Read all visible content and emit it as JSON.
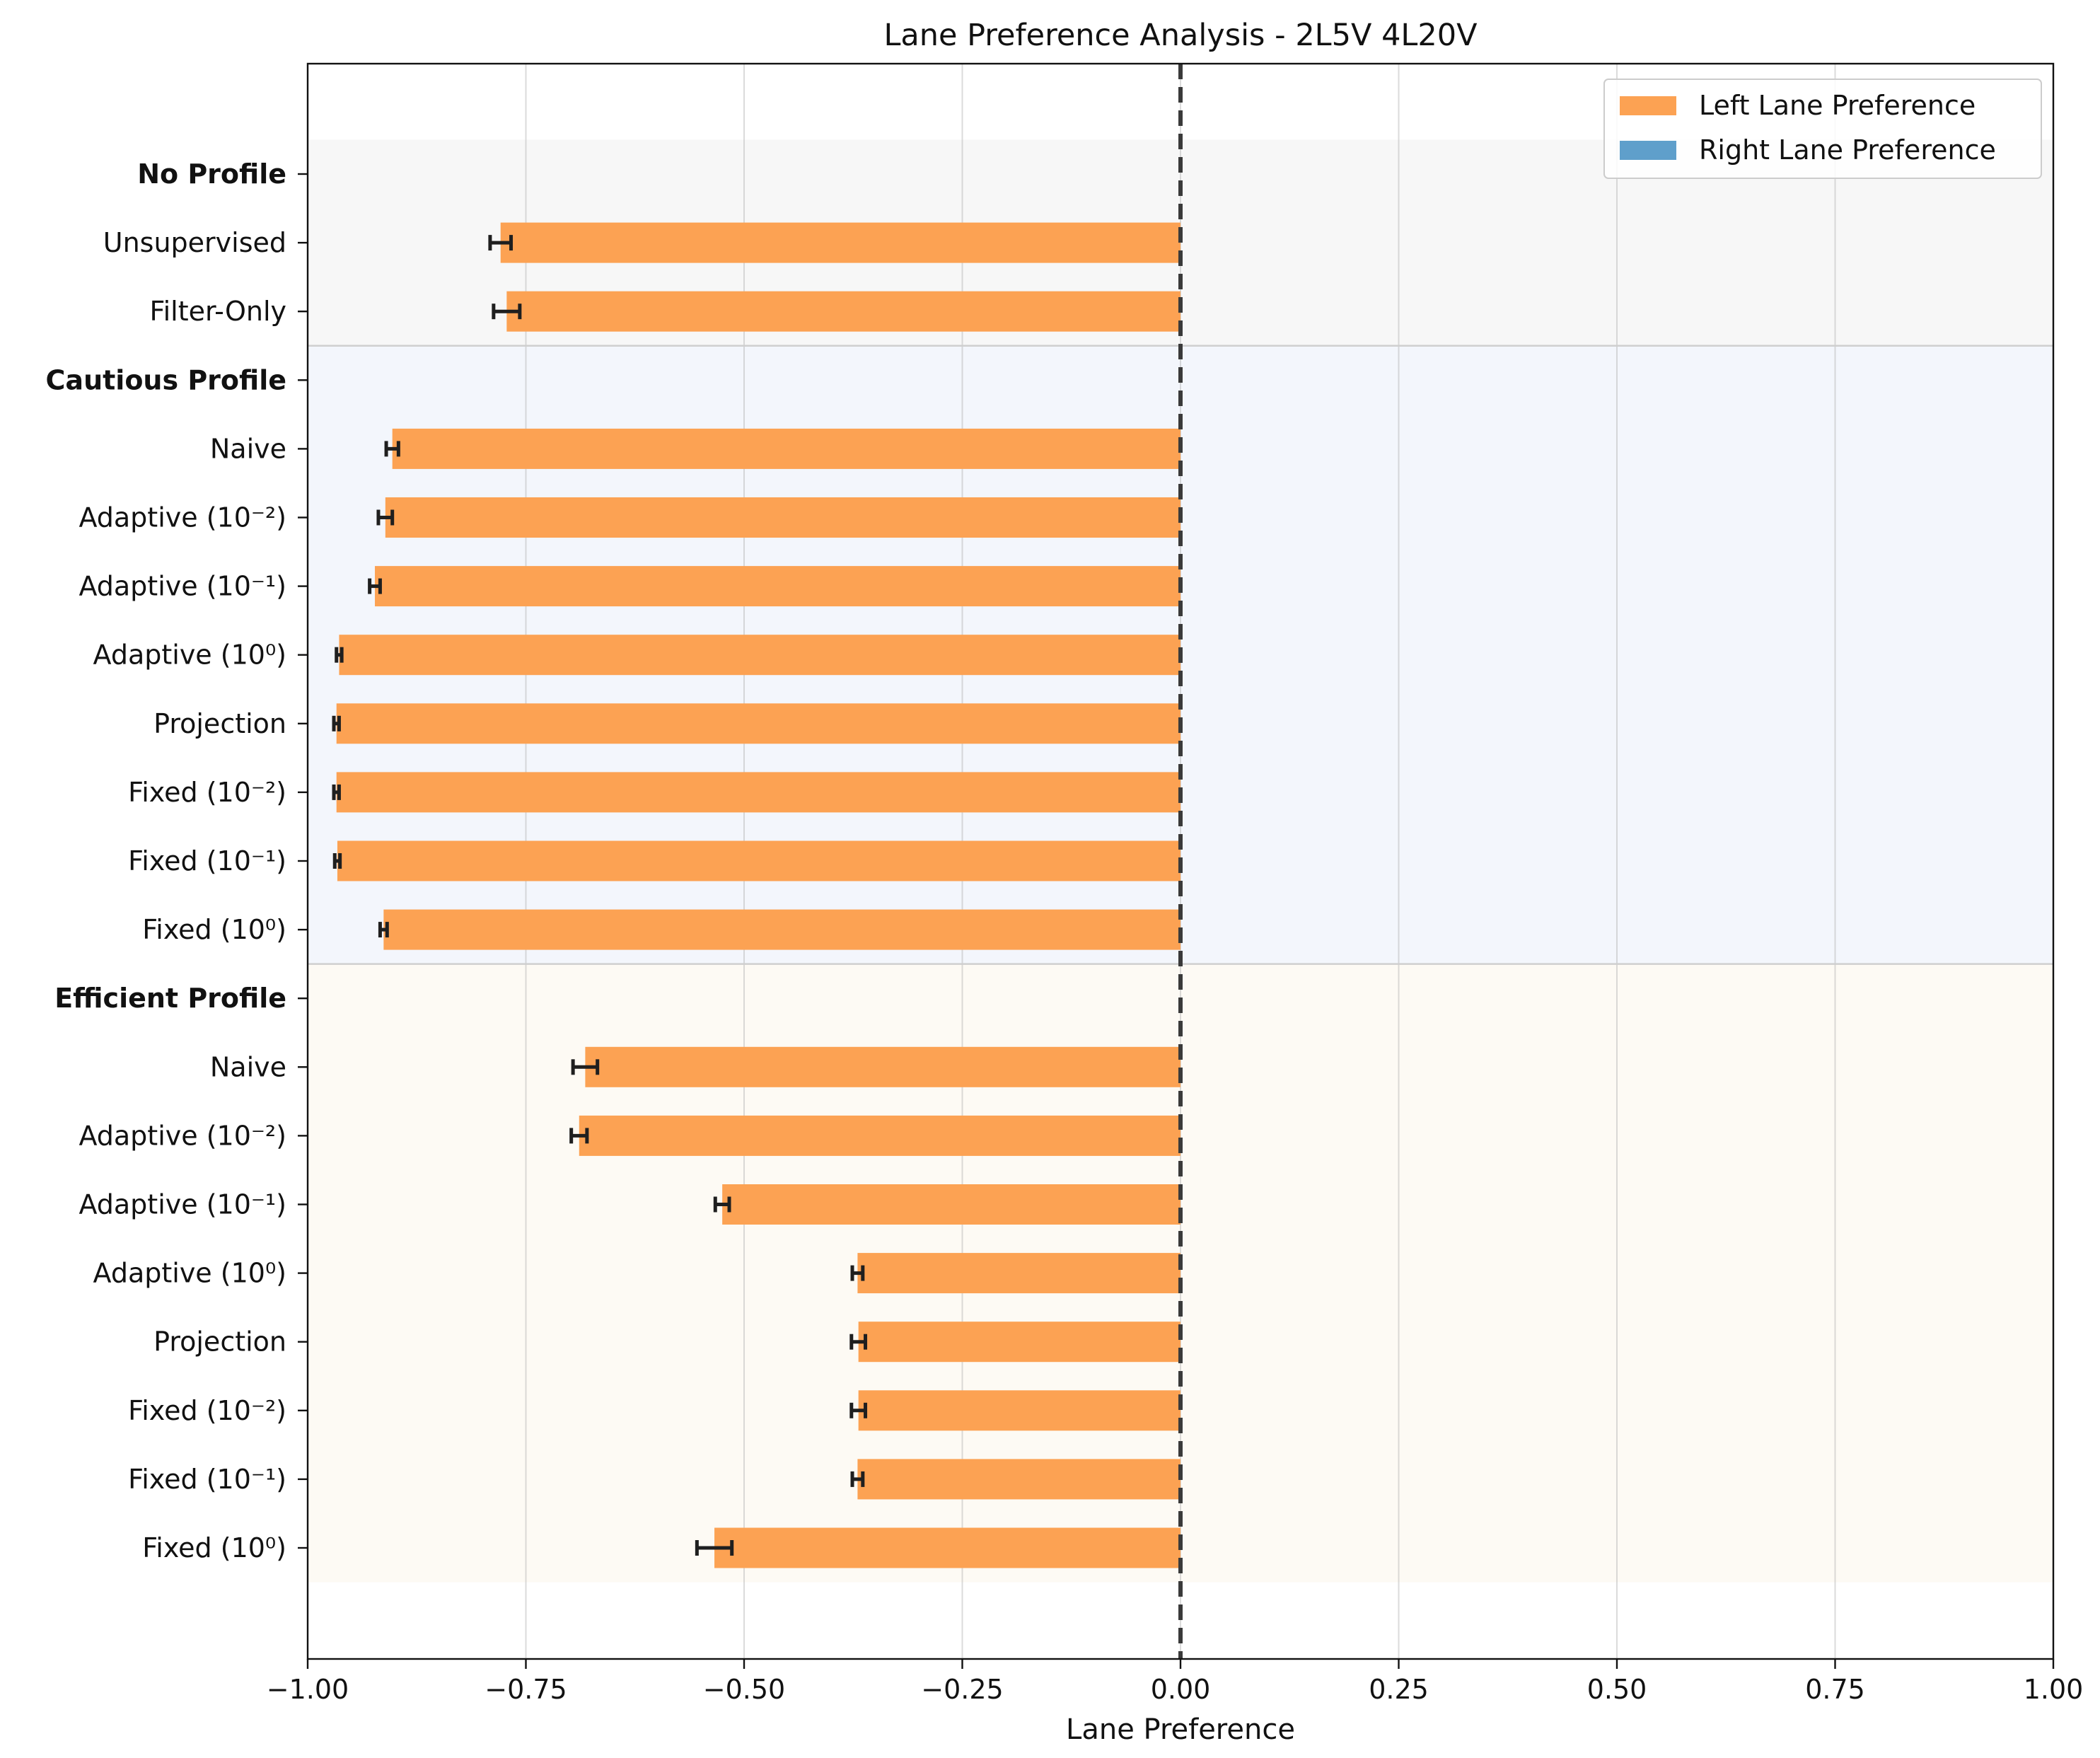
{
  "chart_data": {
    "type": "bar",
    "orientation": "horizontal",
    "title": "Lane Preference Analysis - 2L5V 4L20V",
    "xlabel": "Lane Preference",
    "ylabel": "",
    "xlim": [
      -1.0,
      1.0
    ],
    "xticks": [
      -1.0,
      -0.75,
      -0.5,
      -0.25,
      0.0,
      0.25,
      0.5,
      0.75,
      1.0
    ],
    "xtick_labels": [
      "−1.00",
      "−0.75",
      "−0.50",
      "−0.25",
      "0.00",
      "0.25",
      "0.50",
      "0.75",
      "1.00"
    ],
    "grid": "vertical",
    "zero_line": "dashed",
    "legend": {
      "placement": "top-right",
      "entries": [
        {
          "label": "Left Lane Preference",
          "color": "#fca253"
        },
        {
          "label": "Right Lane Preference",
          "color": "#5f9fcb"
        }
      ]
    },
    "groups": [
      {
        "name": "No Profile",
        "background": "#f7f7f7",
        "rows": [
          {
            "label": "Unsupervised",
            "value": -0.779,
            "error": 0.012
          },
          {
            "label": "Filter-Only",
            "value": -0.772,
            "error": 0.015
          }
        ]
      },
      {
        "name": "Cautious Profile",
        "background": "#f3f6fc",
        "rows": [
          {
            "label": "Naive",
            "value": -0.903,
            "error": 0.007
          },
          {
            "label": "Adaptive (10⁻²)",
            "value": -0.911,
            "error": 0.008
          },
          {
            "label": "Adaptive (10⁻¹)",
            "value": -0.923,
            "error": 0.006
          },
          {
            "label": "Adaptive (10⁰)",
            "value": -0.964,
            "error": 0.003
          },
          {
            "label": "Projection",
            "value": -0.967,
            "error": 0.003
          },
          {
            "label": "Fixed (10⁻²)",
            "value": -0.967,
            "error": 0.003
          },
          {
            "label": "Fixed (10⁻¹)",
            "value": -0.966,
            "error": 0.003
          },
          {
            "label": "Fixed (10⁰)",
            "value": -0.913,
            "error": 0.004
          }
        ]
      },
      {
        "name": "Efficient Profile",
        "background": "#fdfaf4",
        "rows": [
          {
            "label": "Naive",
            "value": -0.682,
            "error": 0.014
          },
          {
            "label": "Adaptive (10⁻²)",
            "value": -0.689,
            "error": 0.009
          },
          {
            "label": "Adaptive (10⁻¹)",
            "value": -0.525,
            "error": 0.008
          },
          {
            "label": "Adaptive (10⁰)",
            "value": -0.37,
            "error": 0.006
          },
          {
            "label": "Projection",
            "value": -0.369,
            "error": 0.008
          },
          {
            "label": "Fixed (10⁻²)",
            "value": -0.369,
            "error": 0.008
          },
          {
            "label": "Fixed (10⁻¹)",
            "value": -0.37,
            "error": 0.006
          },
          {
            "label": "Fixed (10⁰)",
            "value": -0.534,
            "error": 0.02
          }
        ]
      }
    ]
  }
}
